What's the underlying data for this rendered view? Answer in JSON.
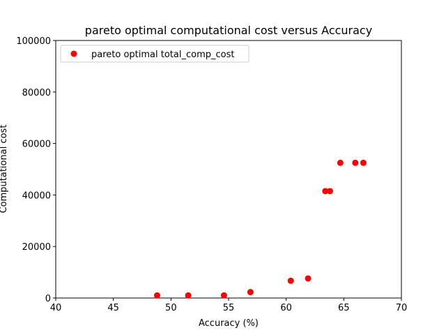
{
  "chart_data": {
    "type": "scatter",
    "title": "pareto optimal computational cost versus Accuracy",
    "xlabel": "Accuracy (%)",
    "ylabel": "Computational cost",
    "xlim": [
      40,
      70
    ],
    "ylim": [
      0,
      100000
    ],
    "x_ticks": [
      "40",
      "45",
      "50",
      "55",
      "60",
      "65",
      "70"
    ],
    "y_ticks": [
      "0",
      "20000",
      "40000",
      "60000",
      "80000",
      "100000"
    ],
    "grid": false,
    "legend_placement": "top-left",
    "series": [
      {
        "name": "pareto optimal total_comp_cost",
        "color": "#ff0000",
        "x": [
          48.8,
          51.5,
          54.6,
          56.9,
          60.4,
          61.9,
          63.4,
          63.8,
          64.7,
          66.0,
          66.7
        ],
        "y": [
          1000,
          1000,
          1000,
          2300,
          6700,
          7600,
          41500,
          41500,
          52500,
          52500,
          52500
        ]
      }
    ]
  }
}
